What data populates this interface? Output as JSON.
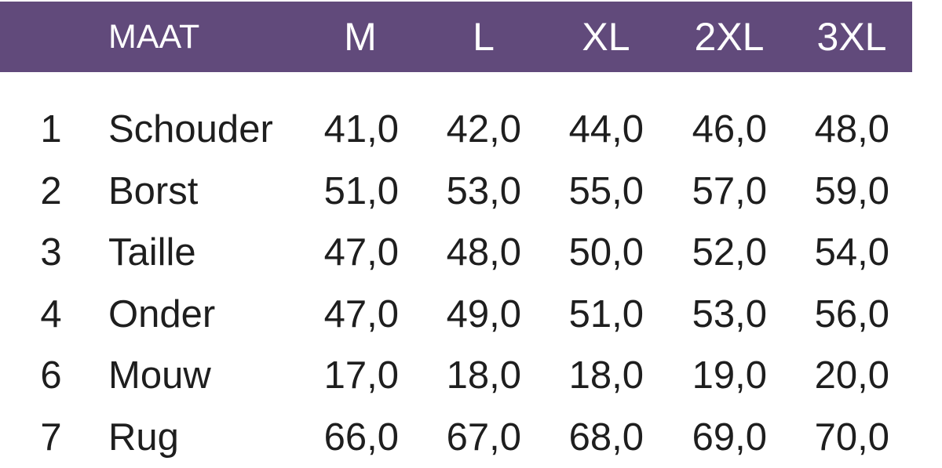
{
  "header": {
    "label": "MAAT",
    "sizes": [
      "M",
      "L",
      "XL",
      "2XL",
      "3XL"
    ]
  },
  "colors": {
    "header_bg": "#614a7b",
    "header_text": "#ffffff"
  },
  "rows": [
    {
      "num": "1",
      "label": "Schouder",
      "values": [
        "41,0",
        "42,0",
        "44,0",
        "46,0",
        "48,0"
      ]
    },
    {
      "num": "2",
      "label": "Borst",
      "values": [
        "51,0",
        "53,0",
        "55,0",
        "57,0",
        "59,0"
      ]
    },
    {
      "num": "3",
      "label": "Taille",
      "values": [
        "47,0",
        "48,0",
        "50,0",
        "52,0",
        "54,0"
      ]
    },
    {
      "num": "4",
      "label": "Onder",
      "values": [
        "47,0",
        "49,0",
        "51,0",
        "53,0",
        "56,0"
      ]
    },
    {
      "num": "6",
      "label": "Mouw",
      "values": [
        "17,0",
        "18,0",
        "18,0",
        "19,0",
        "20,0"
      ]
    },
    {
      "num": "7",
      "label": "Rug",
      "values": [
        "66,0",
        "67,0",
        "68,0",
        "69,0",
        "70,0"
      ]
    }
  ]
}
